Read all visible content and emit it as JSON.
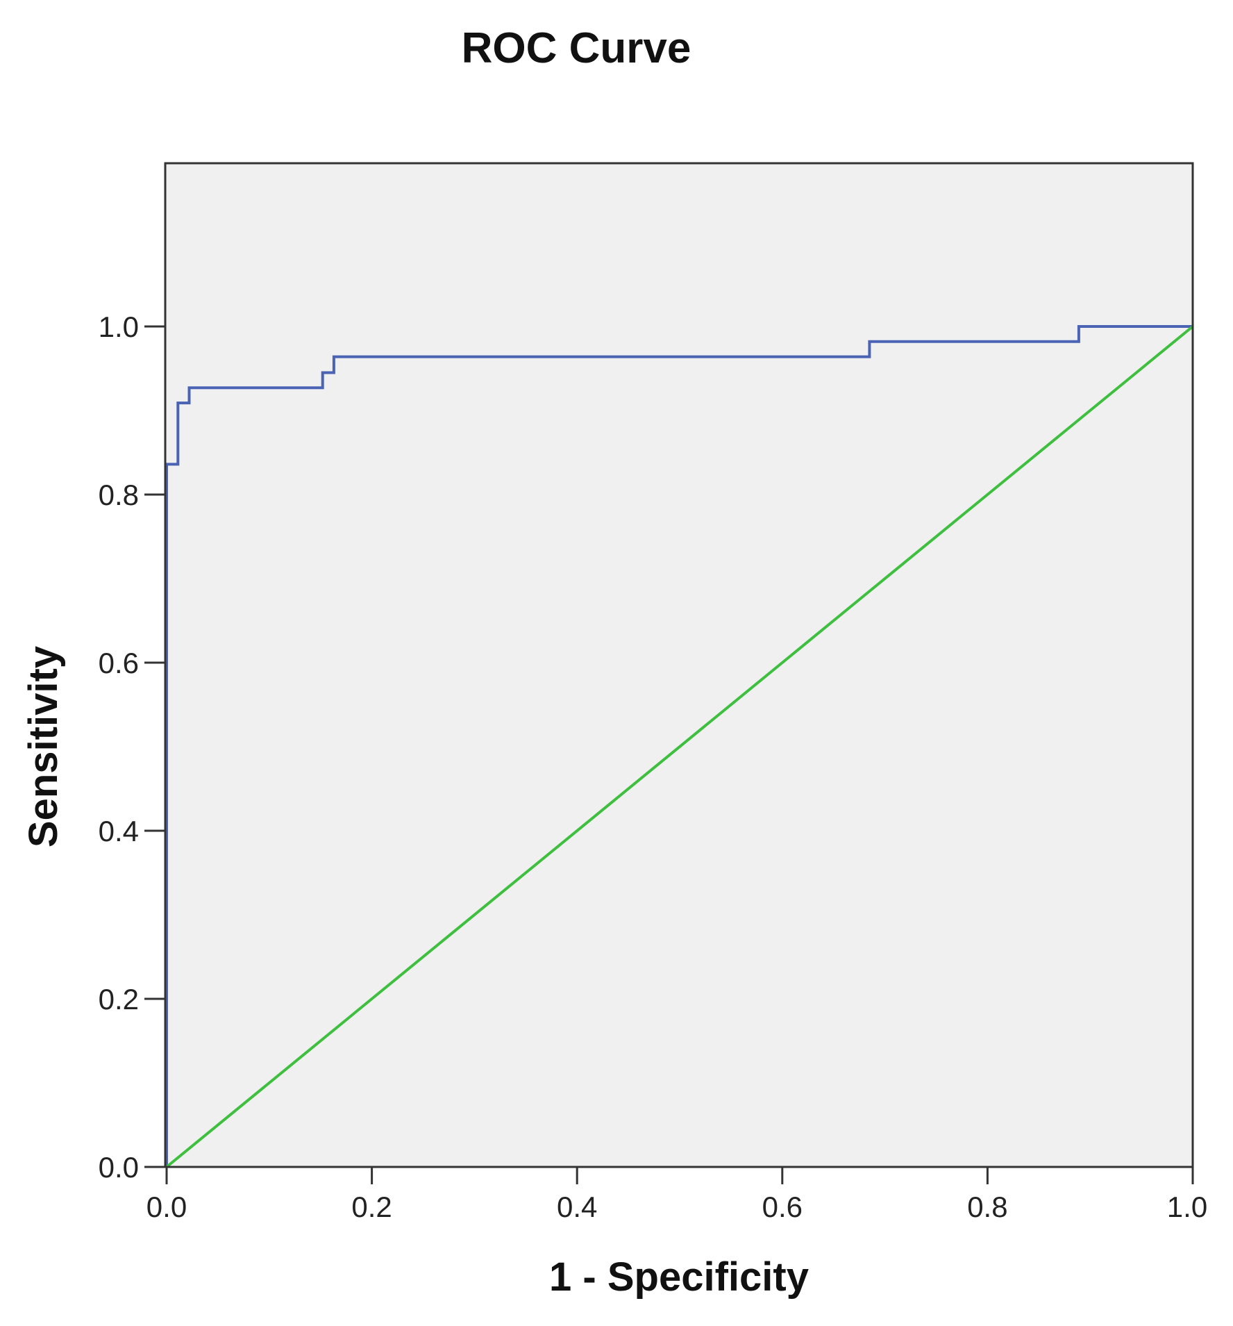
{
  "chart_data": {
    "type": "line",
    "title": "ROC Curve",
    "xlabel": "1 - Specificity",
    "ylabel": "Sensitivity",
    "xlim": [
      0,
      1
    ],
    "ylim": [
      0,
      1.2
    ],
    "x_ticks": [
      "0.0",
      "0.2",
      "0.4",
      "0.6",
      "0.8",
      "1.0"
    ],
    "y_ticks": [
      "0.0",
      "0.2",
      "0.4",
      "0.6",
      "0.8",
      "1.0"
    ],
    "grid": false,
    "background_color": "#f0f0f0",
    "series": [
      {
        "color": "#4a63b5",
        "points": [
          [
            0.0,
            0.0
          ],
          [
            0.0,
            0.836
          ],
          [
            0.011,
            0.836
          ],
          [
            0.011,
            0.909
          ],
          [
            0.022,
            0.909
          ],
          [
            0.022,
            0.927
          ],
          [
            0.033,
            0.927
          ],
          [
            0.033,
            0.927
          ],
          [
            0.152,
            0.927
          ],
          [
            0.152,
            0.945
          ],
          [
            0.163,
            0.945
          ],
          [
            0.163,
            0.964
          ],
          [
            0.685,
            0.964
          ],
          [
            0.685,
            0.982
          ],
          [
            0.889,
            0.982
          ],
          [
            0.889,
            1.0
          ],
          [
            1.0,
            1.0
          ]
        ]
      },
      {
        "color": "#3fbf3f",
        "points": [
          [
            0.0,
            0.0
          ],
          [
            1.0,
            1.0
          ]
        ]
      }
    ]
  }
}
